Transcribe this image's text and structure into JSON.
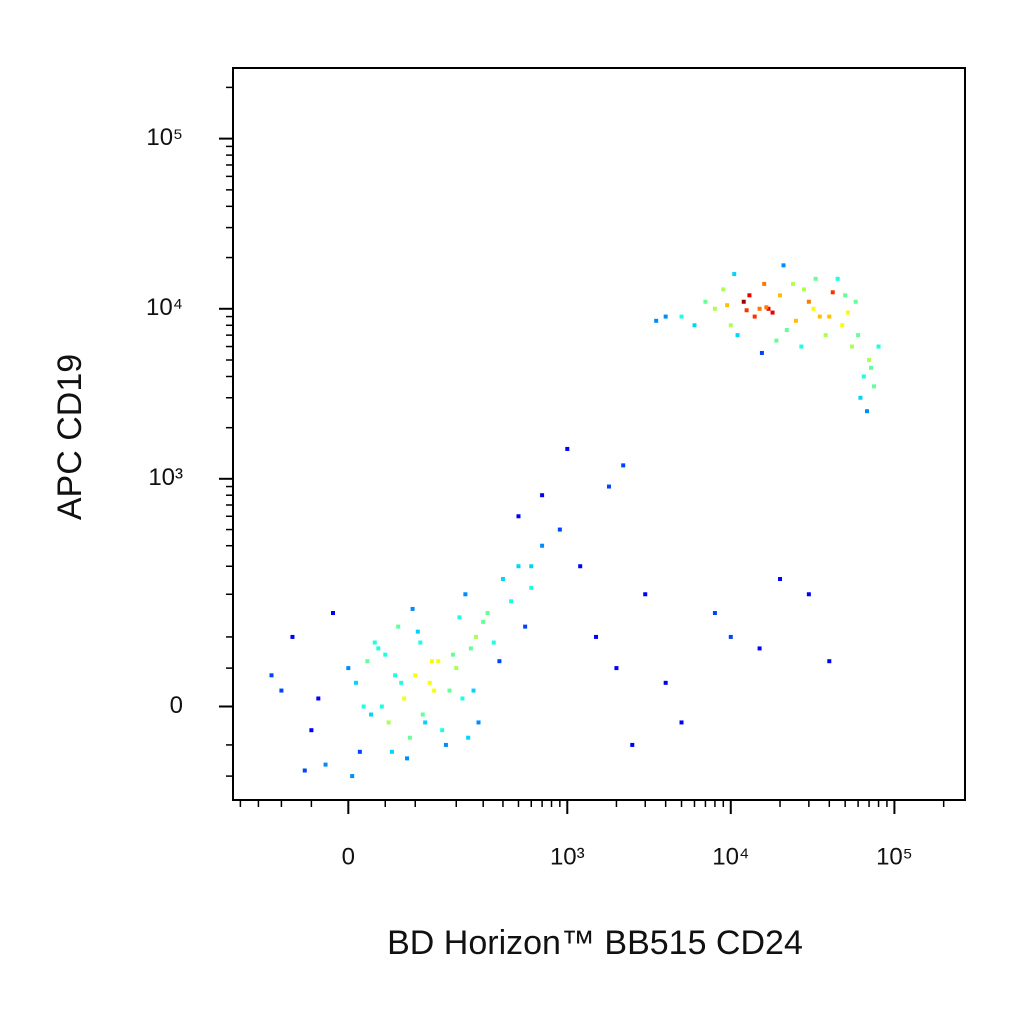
{
  "chart_data": {
    "type": "scatter",
    "x_label": "BD Horizon™ BB515 CD24",
    "y_label": "APC CD19",
    "xscale": "biexponential",
    "yscale": "biexponential",
    "xlim": [
      -224,
      270000
    ],
    "ylim": [
      -150,
      260000
    ],
    "xticks": [
      0,
      {
        "value": 1000,
        "label": "10³"
      },
      {
        "value": 10000,
        "label": "10⁴"
      },
      {
        "value": 100000,
        "label": "10⁵"
      }
    ],
    "yticks": [
      0,
      {
        "value": 1000,
        "label": "10³"
      },
      {
        "value": 10000,
        "label": "10⁴"
      },
      {
        "value": 100000,
        "label": "10⁵"
      }
    ],
    "xminorticks": [
      -200,
      -150,
      -100,
      -50,
      50,
      100,
      200,
      300,
      400,
      500,
      600,
      700,
      800,
      900,
      2000,
      3000,
      4000,
      5000,
      6000,
      7000,
      8000,
      9000,
      20000,
      30000,
      40000,
      50000,
      60000,
      70000,
      80000,
      90000,
      200000
    ],
    "yminorticks": [
      -100,
      -50,
      50,
      100,
      200,
      300,
      400,
      500,
      600,
      700,
      800,
      900,
      2000,
      3000,
      4000,
      5000,
      6000,
      7000,
      8000,
      9000,
      20000,
      30000,
      40000,
      50000,
      60000,
      70000,
      80000,
      90000,
      200000
    ],
    "x": [
      -100,
      -50,
      0,
      20,
      40,
      60,
      80,
      100,
      120,
      150,
      -80,
      -30,
      10,
      30,
      50,
      70,
      90,
      110,
      140,
      170,
      200,
      220,
      250,
      280,
      300,
      -60,
      -20,
      5,
      25,
      45,
      65,
      85,
      105,
      130,
      160,
      190,
      230,
      260,
      320,
      350,
      400,
      450,
      500,
      550,
      600,
      -120,
      -40,
      15,
      35,
      55,
      75,
      95,
      115,
      135,
      180,
      210,
      240,
      270,
      380,
      700,
      5000,
      8000,
      10000,
      12000,
      15000,
      18000,
      20000,
      25000,
      30000,
      40000,
      50000,
      60000,
      70000,
      9000,
      11000,
      14000,
      16000,
      17000,
      22000,
      28000,
      35000,
      45000,
      55000,
      65000,
      7000,
      6000,
      13000,
      19000,
      24000,
      32000,
      38000,
      42000,
      48000,
      58000,
      75000,
      4000,
      3500,
      10500,
      15500,
      21000,
      27000,
      33000,
      52000,
      68000,
      80000,
      62000,
      72000,
      12500,
      9500,
      16500,
      1500,
      2000,
      3000,
      5000,
      8000,
      15000,
      30000,
      1200,
      2500,
      4000,
      10000,
      20000,
      40000,
      700,
      900,
      1000,
      1800,
      2200,
      600,
      500
    ],
    "values": [
      20,
      -30,
      50,
      0,
      80,
      -60,
      10,
      40,
      -20,
      60,
      100,
      -80,
      30,
      -10,
      70,
      120,
      -40,
      90,
      20,
      -50,
      50,
      10,
      80,
      -20,
      130,
      -90,
      150,
      -100,
      60,
      0,
      40,
      -70,
      110,
      30,
      -30,
      70,
      200,
      20,
      150,
      90,
      250,
      180,
      300,
      120,
      220,
      40,
      10,
      -60,
      90,
      -20,
      30,
      160,
      -10,
      60,
      20,
      140,
      -40,
      100,
      60,
      400,
      9000,
      10000,
      8000,
      11000,
      10000,
      9500,
      12000,
      8500,
      11000,
      9000,
      12000,
      7000,
      5000,
      13000,
      7000,
      9000,
      14000,
      10000,
      7500,
      13000,
      9000,
      15000,
      6000,
      4000,
      11000,
      8000,
      12000,
      6500,
      14000,
      10000,
      7000,
      12500,
      8000,
      11000,
      3500,
      9000,
      8500,
      16000,
      5500,
      18000,
      6000,
      15000,
      9500,
      2500,
      6000,
      3000,
      4500,
      9800,
      10500,
      10200,
      100,
      50,
      200,
      -20,
      150,
      80,
      200,
      300,
      -50,
      30,
      100,
      250,
      60,
      800,
      500,
      1500,
      900,
      1200,
      300,
      600
    ]
  }
}
